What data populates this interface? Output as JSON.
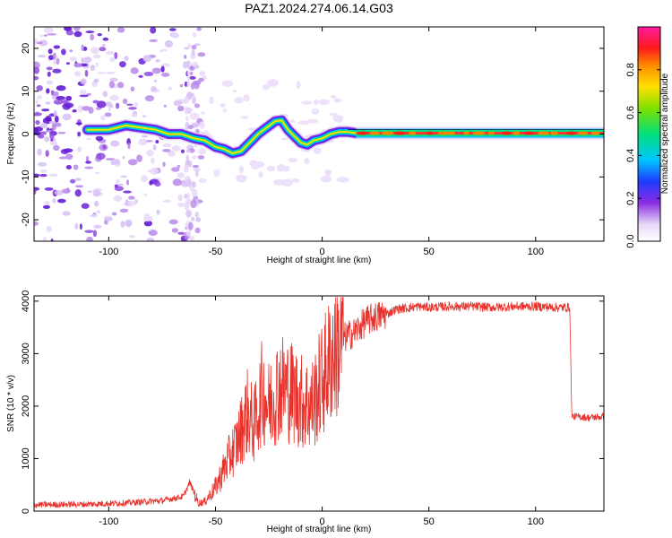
{
  "title": "PAZ1.2024.274.06.14.G03",
  "chart_data": [
    {
      "type": "heatmap",
      "xlabel": "Height of straight line (km)",
      "ylabel": "Frequency (Hz)",
      "xlim": [
        -135,
        132
      ],
      "ylim": [
        -25,
        25
      ],
      "xticks": [
        -100,
        -50,
        0,
        50,
        100
      ],
      "yticks": [
        -20,
        -10,
        0,
        10,
        20
      ],
      "ridge": {
        "x": [
          -110,
          -100,
          -92,
          -85,
          -78,
          -72,
          -66,
          -60,
          -55,
          -50,
          -46,
          -42,
          -38,
          -34,
          -30,
          -26,
          -22,
          -19,
          -16,
          -13,
          -10,
          -7,
          -4,
          0,
          4,
          8,
          12,
          16,
          132
        ],
        "y": [
          1,
          1,
          2,
          1.5,
          1,
          0,
          0,
          -1,
          -1.5,
          -3,
          -3.5,
          -4.5,
          -4,
          -2,
          0,
          1.5,
          3,
          3.2,
          1,
          -0.5,
          -2,
          -2.5,
          -1.5,
          -1,
          0,
          0.5,
          0.5,
          0.2,
          0.2
        ]
      },
      "colorbar": {
        "label": "Normalized spectral amplitude",
        "range": [
          0,
          1
        ],
        "ticks": [
          0.0,
          0.2,
          0.4,
          0.6,
          0.8
        ],
        "tick_labels": [
          "0.0",
          "0.2",
          "0.4",
          "0.6",
          "0.8"
        ],
        "colormap": "rainbow-white"
      }
    },
    {
      "type": "line",
      "xlabel": "Height of straight line (km)",
      "ylabel": "SNR (10 * v/v)",
      "xlim": [
        -135,
        132
      ],
      "ylim": [
        0,
        4100
      ],
      "xticks": [
        -100,
        -50,
        0,
        50,
        100
      ],
      "yticks": [
        0,
        1000,
        2000,
        3000,
        4000
      ],
      "color": "#e8322c",
      "series": [
        {
          "x": [
            -135,
            -110,
            -90,
            -75,
            -65,
            -62,
            -58,
            -55,
            -50,
            -45,
            -40,
            -35,
            -32,
            -28,
            -25,
            -20,
            -15,
            -10,
            -5,
            0,
            5,
            10,
            15,
            20,
            25,
            30,
            35,
            40,
            45,
            50,
            60,
            70,
            80,
            90,
            100,
            110,
            116,
            117,
            120,
            125,
            132
          ],
          "y": [
            120,
            130,
            160,
            200,
            280,
            550,
            150,
            180,
            450,
            900,
            1300,
            1900,
            1600,
            2300,
            2000,
            2400,
            2300,
            2100,
            2000,
            2500,
            3000,
            3300,
            3400,
            3600,
            3700,
            3750,
            3850,
            3870,
            3900,
            3880,
            3900,
            3900,
            3880,
            3900,
            3900,
            3880,
            3880,
            1800,
            1800,
            1780,
            1800
          ]
        }
      ]
    }
  ]
}
